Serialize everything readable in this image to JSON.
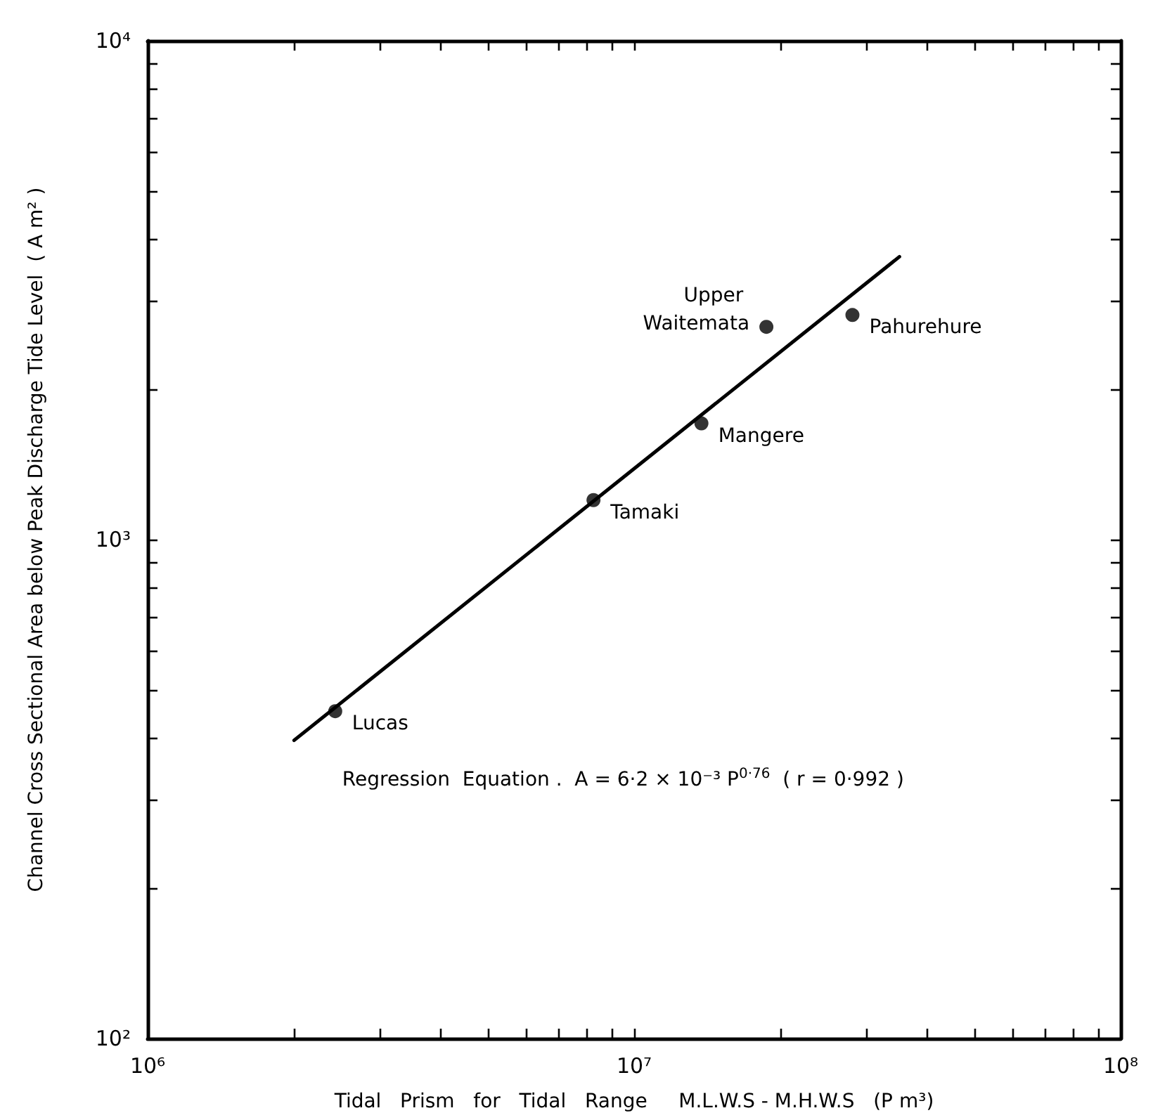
{
  "chart_data": {
    "type": "scatter",
    "xlabel": "Tidal   Prism   for   Tidal   Range     M.L.W.S - M.H.W.S   (P m³)",
    "ylabel": "Channel Cross Sectional Area below Peak Discharge Tide Level  ( A m² )",
    "log": "xy",
    "grid": false,
    "marker": "circle",
    "xlim": [
      1000000,
      100000000
    ],
    "ylim": [
      100,
      10000
    ],
    "xticks": [
      {
        "value": 1000000,
        "label": "10⁶"
      },
      {
        "value": 2000000,
        "label": null
      },
      {
        "value": 3000000,
        "label": null
      },
      {
        "value": 4000000,
        "label": null
      },
      {
        "value": 5000000,
        "label": null
      },
      {
        "value": 6000000,
        "label": null
      },
      {
        "value": 7000000,
        "label": null
      },
      {
        "value": 8000000,
        "label": null
      },
      {
        "value": 9000000,
        "label": null
      },
      {
        "value": 10000000,
        "label": "10⁷"
      },
      {
        "value": 20000000,
        "label": null
      },
      {
        "value": 30000000,
        "label": null
      },
      {
        "value": 40000000,
        "label": null
      },
      {
        "value": 50000000,
        "label": null
      },
      {
        "value": 60000000,
        "label": null
      },
      {
        "value": 70000000,
        "label": null
      },
      {
        "value": 80000000,
        "label": null
      },
      {
        "value": 90000000,
        "label": null
      },
      {
        "value": 100000000,
        "label": "10⁸"
      }
    ],
    "yticks": [
      {
        "value": 100,
        "label": "10²"
      },
      {
        "value": 200,
        "label": null
      },
      {
        "value": 300,
        "label": null
      },
      {
        "value": 400,
        "label": null
      },
      {
        "value": 500,
        "label": null
      },
      {
        "value": 600,
        "label": null
      },
      {
        "value": 700,
        "label": null
      },
      {
        "value": 800,
        "label": null
      },
      {
        "value": 900,
        "label": null
      },
      {
        "value": 1000,
        "label": "10³"
      },
      {
        "value": 2000,
        "label": null
      },
      {
        "value": 3000,
        "label": null
      },
      {
        "value": 4000,
        "label": null
      },
      {
        "value": 5000,
        "label": null
      },
      {
        "value": 6000,
        "label": null
      },
      {
        "value": 7000,
        "label": null
      },
      {
        "value": 8000,
        "label": null
      },
      {
        "value": 9000,
        "label": null
      },
      {
        "value": 10000,
        "label": "10⁴"
      }
    ],
    "series": [
      {
        "color": "#000000",
        "x": [
          2430000,
          8250000,
          13750000,
          18700000,
          28100000
        ],
        "values": [
          453,
          1200,
          1710,
          2670,
          2820
        ]
      },
      {
        "type": "line",
        "color": "#000000",
        "marker": "none",
        "line_style": "solid",
        "x": [
          2000000,
          35100000
        ],
        "values": [
          396,
          3690
        ]
      }
    ],
    "annotations": [
      {
        "text": "Lucas",
        "x": 2430000,
        "y": 453
      },
      {
        "text": "Tamaki",
        "x": 8250000,
        "y": 1200
      },
      {
        "text": "Mangere",
        "x": 13750000,
        "y": 1710
      },
      {
        "text": "Upper Waitemata",
        "x": 18700000,
        "y": 2670
      },
      {
        "text": "Pahurehure",
        "x": 28100000,
        "y": 2820
      },
      "Regression  Equation .  A = 6·2 × 10⁻³ P$^{0·76}$  ( r = 0·992 )"
    ]
  }
}
